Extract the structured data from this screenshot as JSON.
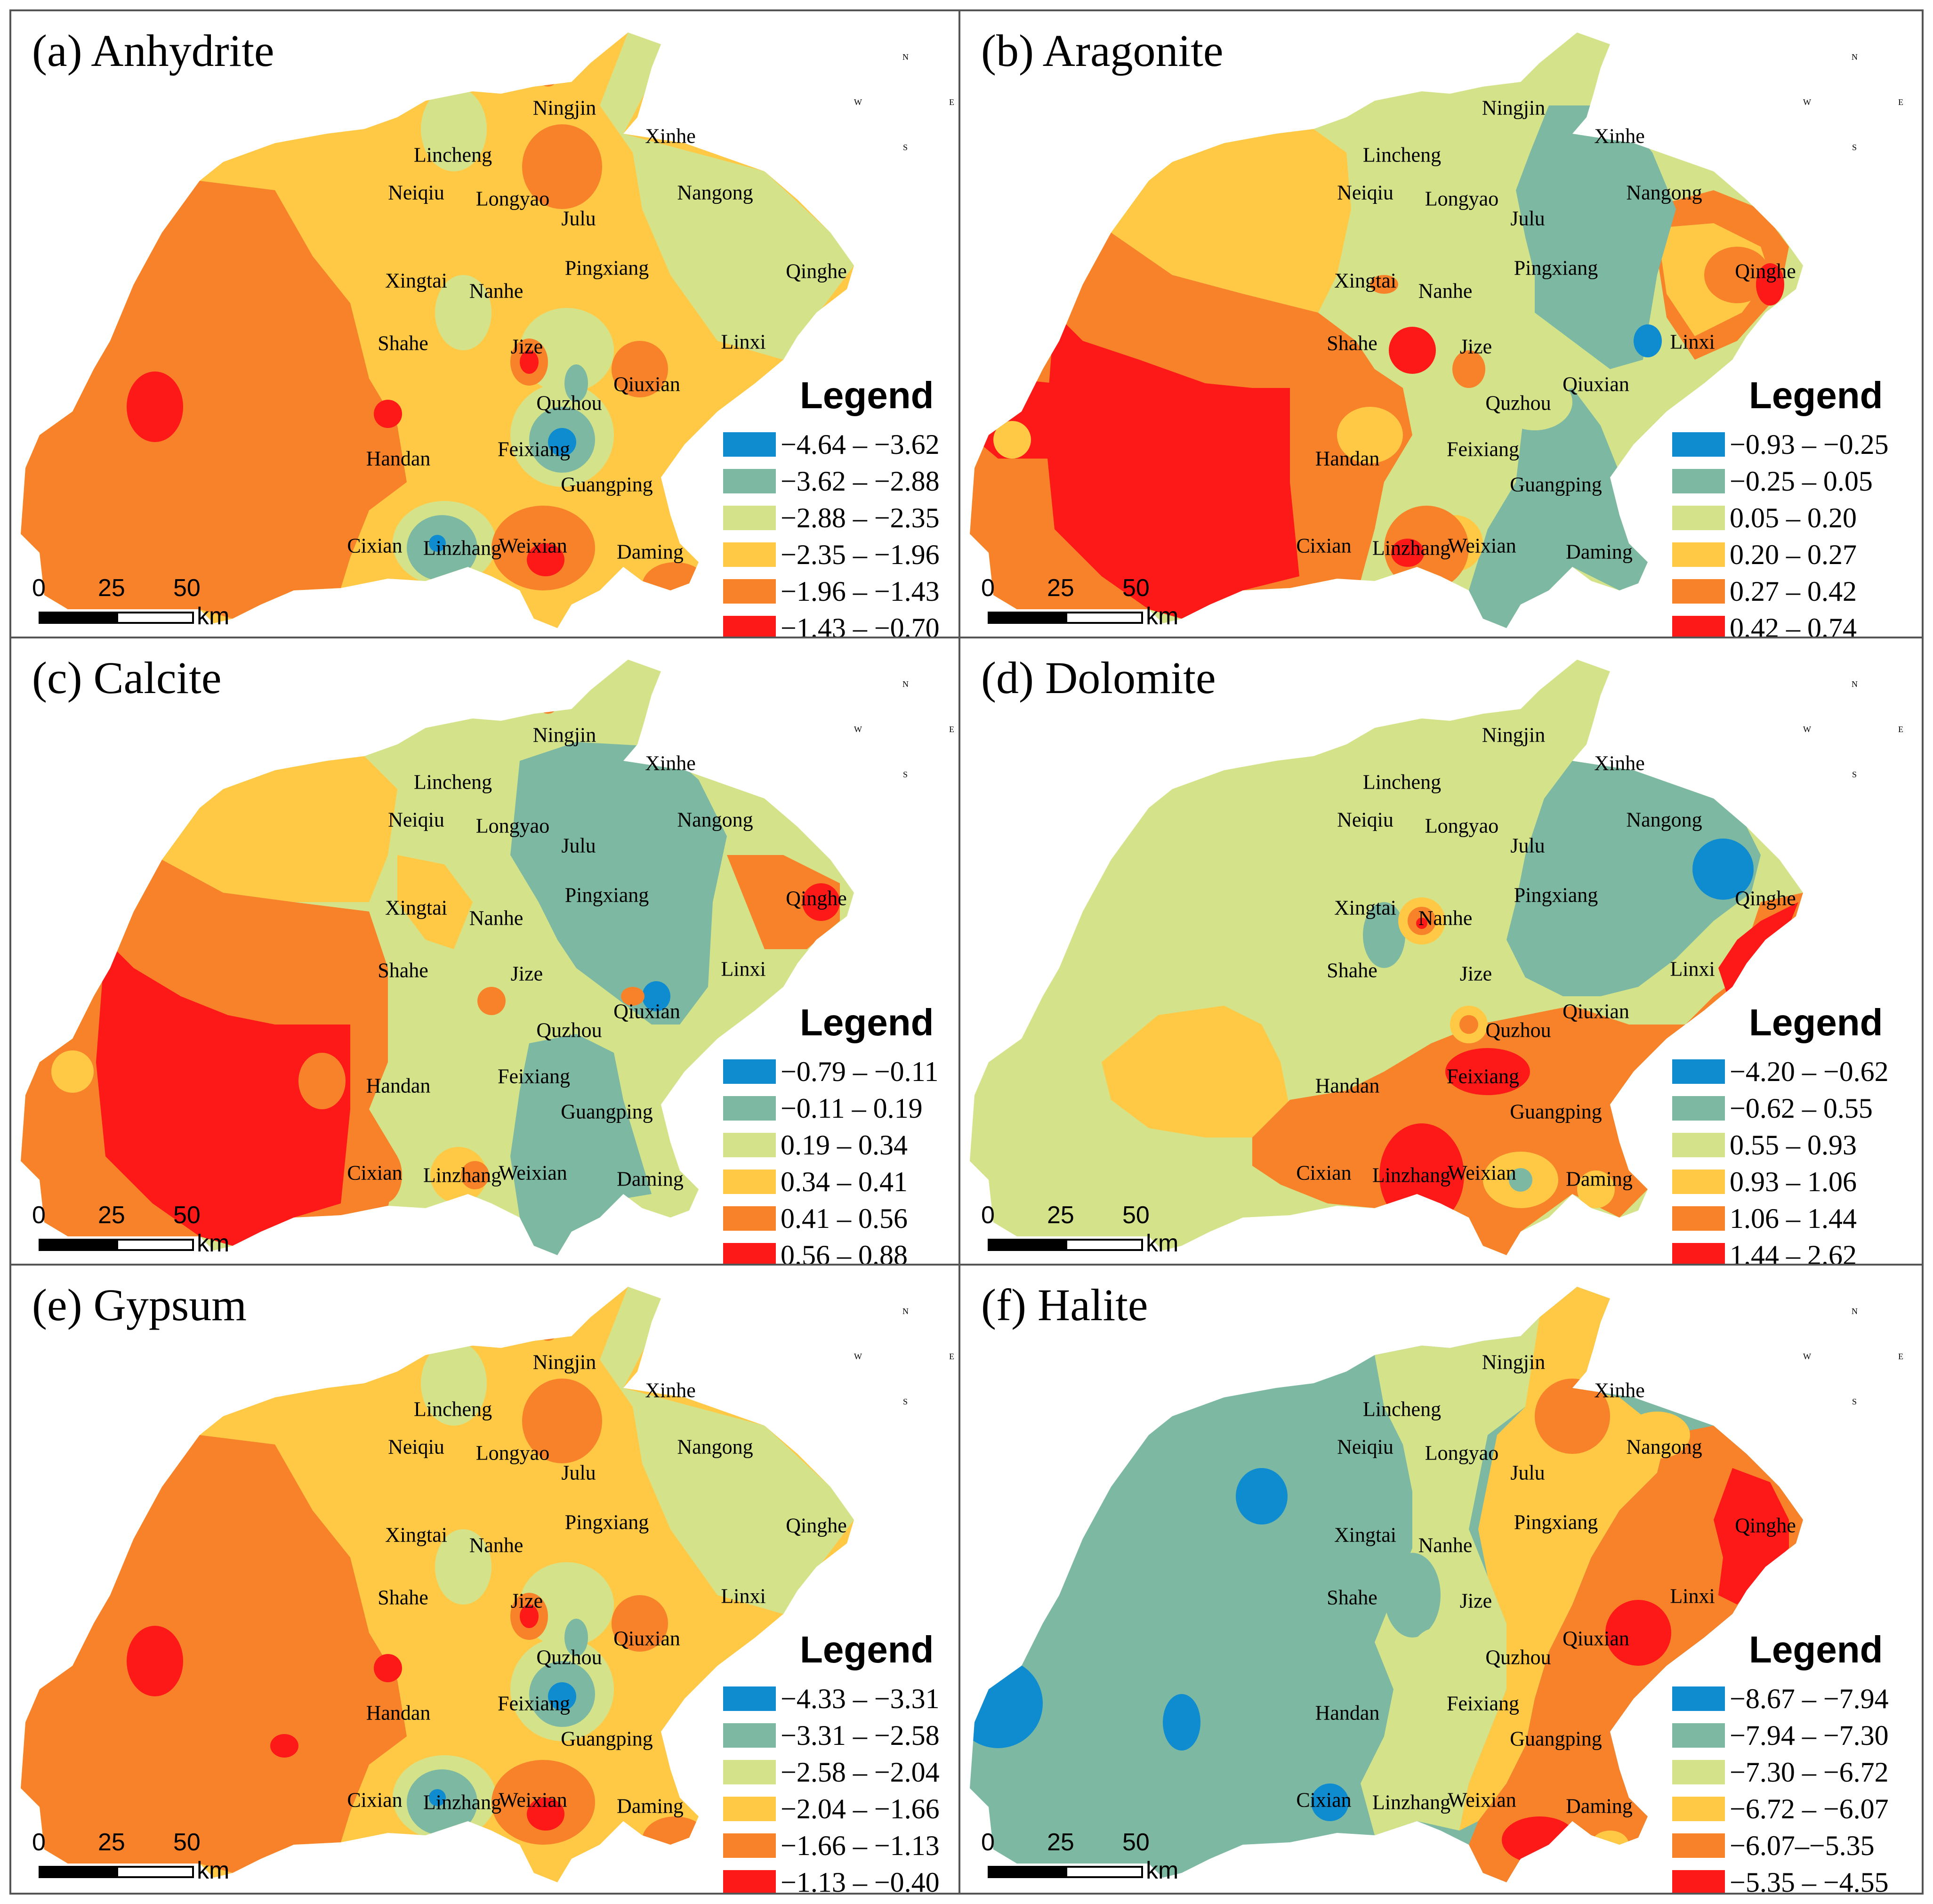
{
  "colors": {
    "class1": "#0f8ccf",
    "class2": "#7db8a3",
    "class3": "#d4e38a",
    "class4": "#ffc845",
    "class5": "#f7822a",
    "class6": "#fe1919"
  },
  "compass": {
    "n": "N",
    "s": "S",
    "e": "E",
    "w": "W",
    "icon": "compass-rose-icon"
  },
  "scale_bar": {
    "labels": [
      "0",
      "25",
      "50"
    ],
    "unit": "km"
  },
  "legend_title": "Legend",
  "cities": [
    {
      "id": "ningjin",
      "name": "Ningjin"
    },
    {
      "id": "xinhe",
      "name": "Xinhe"
    },
    {
      "id": "lincheng",
      "name": "Lincheng"
    },
    {
      "id": "neiqiu",
      "name": "Neiqiu"
    },
    {
      "id": "longyao",
      "name": "Longyao"
    },
    {
      "id": "nangong",
      "name": "Nangong"
    },
    {
      "id": "julu",
      "name": "Julu"
    },
    {
      "id": "pingxiang",
      "name": "Pingxiang"
    },
    {
      "id": "qinghe",
      "name": "Qinghe"
    },
    {
      "id": "xingtai",
      "name": "Xingtai"
    },
    {
      "id": "nanhe",
      "name": "Nanhe"
    },
    {
      "id": "shahe",
      "name": "Shahe"
    },
    {
      "id": "jize",
      "name": "Jize"
    },
    {
      "id": "linxi",
      "name": "Linxi"
    },
    {
      "id": "qiuxian",
      "name": "Qiuxian"
    },
    {
      "id": "quzhou",
      "name": "Quzhou"
    },
    {
      "id": "handan",
      "name": "Handan"
    },
    {
      "id": "feixiang",
      "name": "Feixiang"
    },
    {
      "id": "guangping",
      "name": "Guangping"
    },
    {
      "id": "cixian",
      "name": "Cixian"
    },
    {
      "id": "linzhang",
      "name": "Linzhang"
    },
    {
      "id": "weixian",
      "name": "Weixian"
    },
    {
      "id": "daming",
      "name": "Daming"
    }
  ],
  "panels": [
    {
      "id": "a",
      "title": "(a) Anhydrite",
      "mineral": "Anhydrite",
      "legend": [
        "−4.64 – −3.62",
        "−3.62 – −2.88",
        "−2.88 – −2.35",
        "−2.35 – −1.96",
        "−1.96 – −1.43",
        "−1.43 – −0.70"
      ]
    },
    {
      "id": "b",
      "title": "(b) Aragonite",
      "mineral": "Aragonite",
      "legend": [
        "−0.93 – −0.25",
        "−0.25 – 0.05",
        "0.05 – 0.20",
        "0.20 – 0.27",
        "0.27 – 0.42",
        "0.42 – 0.74"
      ]
    },
    {
      "id": "c",
      "title": "(c) Calcite",
      "mineral": "Calcite",
      "legend": [
        "−0.79 – −0.11",
        "−0.11 – 0.19",
        "0.19 – 0.34",
        "0.34 – 0.41",
        "0.41 – 0.56",
        "0.56 – 0.88"
      ]
    },
    {
      "id": "d",
      "title": "(d) Dolomite",
      "mineral": "Dolomite",
      "legend": [
        "−4.20 – −0.62",
        "−0.62 – 0.55",
        "0.55 – 0.93",
        "0.93 – 1.06",
        "1.06 – 1.44",
        "1.44 – 2.62"
      ]
    },
    {
      "id": "e",
      "title": "(e) Gypsum",
      "mineral": "Gypsum",
      "legend": [
        "−4.33 – −3.31",
        "−3.31 – −2.58",
        "−2.58 – −2.04",
        "−2.04 – −1.66",
        "−1.66 – −1.13",
        "−1.13 – −0.40"
      ]
    },
    {
      "id": "f",
      "title": "(f) Halite",
      "mineral": "Halite",
      "legend": [
        "−8.67 – −7.94",
        "−7.94 – −7.30",
        "−7.30 – −6.72",
        "−6.72 – −6.07",
        "−6.07–−5.35",
        "−5.35 – −4.55"
      ]
    }
  ]
}
